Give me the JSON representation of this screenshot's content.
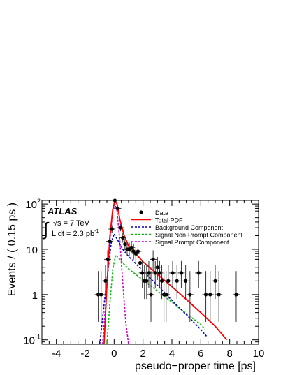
{
  "chart_data": {
    "type": "scatter",
    "xlabel": "pseudo−proper time [ps]",
    "ylabel": "Events / ( 0.15 ps )",
    "xlim": [
      -5,
      10
    ],
    "ylim": [
      0.08,
      120
    ],
    "yscale": "log",
    "x_ticks": [
      -4,
      -2,
      0,
      2,
      4,
      6,
      8,
      10
    ],
    "y_ticks": [
      {
        "value": 0.1,
        "base": "10",
        "exp": "-1"
      },
      {
        "value": 1,
        "base": "1",
        "exp": ""
      },
      {
        "value": 10,
        "base": "10",
        "exp": ""
      },
      {
        "value": 100,
        "base": "10",
        "exp": "2"
      }
    ],
    "annotation": {
      "experiment": "ATLAS",
      "energy": "√s = 7 TeV",
      "luminosity": "L dt = 2.3 pb",
      "luminosity_exp": "-1",
      "integral": "∫"
    },
    "legend_position": "top-right",
    "legend": [
      {
        "label": "Data",
        "kind": "marker",
        "color": "#000000"
      },
      {
        "label": "Total PDF",
        "kind": "solid",
        "color": "#ff0000"
      },
      {
        "label": "Background Component",
        "kind": "dashed",
        "color": "#0000cc"
      },
      {
        "label": "Signal Non-Prompt Component",
        "kind": "dashed",
        "color": "#00bb00"
      },
      {
        "label": "Signal Prompt Component",
        "kind": "dashed",
        "color": "#cc00cc"
      }
    ],
    "data_points": [
      {
        "x": -1.1,
        "y": 1,
        "lo": 0.25,
        "hi": 3.3
      },
      {
        "x": -0.9,
        "y": 1,
        "lo": 0.25,
        "hi": 3.3
      },
      {
        "x": -0.6,
        "y": 2,
        "lo": 0.8,
        "hi": 4.5
      },
      {
        "x": -0.45,
        "y": 6,
        "lo": 3.5,
        "hi": 9.5
      },
      {
        "x": -0.3,
        "y": 15,
        "lo": 11,
        "hi": 20
      },
      {
        "x": -0.15,
        "y": 28,
        "lo": 23,
        "hi": 34
      },
      {
        "x": 0.05,
        "y": 120,
        "lo": 109,
        "hi": 131
      },
      {
        "x": 0.25,
        "y": 80,
        "lo": 71,
        "hi": 89
      },
      {
        "x": 0.45,
        "y": 30,
        "lo": 25,
        "hi": 36
      },
      {
        "x": 0.6,
        "y": 18,
        "lo": 14,
        "hi": 23
      },
      {
        "x": 0.75,
        "y": 13,
        "lo": 9.5,
        "hi": 17
      },
      {
        "x": 0.9,
        "y": 10,
        "lo": 7,
        "hi": 14
      },
      {
        "x": 1.05,
        "y": 10,
        "lo": 7,
        "hi": 14
      },
      {
        "x": 1.2,
        "y": 11,
        "lo": 8,
        "hi": 15
      },
      {
        "x": 1.35,
        "y": 9,
        "lo": 6,
        "hi": 13
      },
      {
        "x": 1.5,
        "y": 8,
        "lo": 5,
        "hi": 11.5
      },
      {
        "x": 1.65,
        "y": 9,
        "lo": 6,
        "hi": 13
      },
      {
        "x": 1.8,
        "y": 5,
        "lo": 2.9,
        "hi": 8
      },
      {
        "x": 1.95,
        "y": 3,
        "lo": 1.4,
        "hi": 5.5
      },
      {
        "x": 2.1,
        "y": 2,
        "lo": 0.8,
        "hi": 4.5
      },
      {
        "x": 2.25,
        "y": 2,
        "lo": 0.8,
        "hi": 4.5
      },
      {
        "x": 2.4,
        "y": 3,
        "lo": 1.4,
        "hi": 5.5
      },
      {
        "x": 2.55,
        "y": 1,
        "lo": 0.25,
        "hi": 3.3
      },
      {
        "x": 2.7,
        "y": 6,
        "lo": 3.5,
        "hi": 9.5
      },
      {
        "x": 2.85,
        "y": 3,
        "lo": 1.4,
        "hi": 5.5
      },
      {
        "x": 3.0,
        "y": 4,
        "lo": 2.1,
        "hi": 6.8
      },
      {
        "x": 3.15,
        "y": 3,
        "lo": 1.4,
        "hi": 5.5
      },
      {
        "x": 3.3,
        "y": 2,
        "lo": 0.8,
        "hi": 4.5
      },
      {
        "x": 3.45,
        "y": 1,
        "lo": 0.25,
        "hi": 3.3
      },
      {
        "x": 3.6,
        "y": 1,
        "lo": 0.25,
        "hi": 3.3
      },
      {
        "x": 3.75,
        "y": 2,
        "lo": 0.8,
        "hi": 4.5
      },
      {
        "x": 4.05,
        "y": 3,
        "lo": 1.4,
        "hi": 5.5
      },
      {
        "x": 4.35,
        "y": 2,
        "lo": 0.8,
        "hi": 4.5
      },
      {
        "x": 4.65,
        "y": 3,
        "lo": 1.4,
        "hi": 5.5
      },
      {
        "x": 4.95,
        "y": 2,
        "lo": 0.8,
        "hi": 4.5
      },
      {
        "x": 5.25,
        "y": 1,
        "lo": 0.25,
        "hi": 3.3
      },
      {
        "x": 5.85,
        "y": 3,
        "lo": 1.4,
        "hi": 5.5
      },
      {
        "x": 6.35,
        "y": 1,
        "lo": 0.25,
        "hi": 3.3
      },
      {
        "x": 6.65,
        "y": 1,
        "lo": 0.25,
        "hi": 3.3
      },
      {
        "x": 7.0,
        "y": 2,
        "lo": 0.8,
        "hi": 4.5
      },
      {
        "x": 7.25,
        "y": 1,
        "lo": 0.25,
        "hi": 3.3
      },
      {
        "x": 8.45,
        "y": 1,
        "lo": 0.25,
        "hi": 3.3
      }
    ],
    "series": [
      {
        "label_index": 1,
        "color": "#ff0000",
        "dash": "",
        "x": [
          -0.7,
          -0.5,
          -0.3,
          -0.1,
          0.05,
          0.2,
          0.4,
          0.7,
          1.0,
          2.0,
          3.0,
          4.0,
          5.0,
          6.0,
          7.0,
          7.8
        ],
        "y": [
          0.08,
          1.6,
          18,
          75,
          120,
          100,
          45,
          20,
          12,
          5.3,
          2.8,
          1.5,
          0.78,
          0.4,
          0.2,
          0.1
        ]
      },
      {
        "label_index": 2,
        "color": "#0000cc",
        "dash": "3,2",
        "x": [
          -1.0,
          -0.7,
          -0.4,
          -0.2,
          0.0,
          0.3,
          0.6,
          1.0,
          2.0,
          3.0,
          4.0,
          5.0,
          6.0,
          6.4
        ],
        "y": [
          0.08,
          0.6,
          4,
          14,
          22,
          15,
          10,
          7,
          3.3,
          1.6,
          0.75,
          0.36,
          0.17,
          0.12
        ]
      },
      {
        "label_index": 3,
        "color": "#00bb00",
        "dash": "3,2",
        "x": [
          -0.5,
          -0.3,
          -0.1,
          0.1,
          0.3,
          0.6,
          1.0,
          2.0,
          3.0,
          4.0,
          5.0,
          6.0,
          6.3
        ],
        "y": [
          0.08,
          0.6,
          3.5,
          7.5,
          6.5,
          5,
          3.7,
          2.1,
          1.2,
          0.68,
          0.38,
          0.22,
          0.17
        ]
      },
      {
        "label_index": 4,
        "color": "#cc00cc",
        "dash": "3,2",
        "x": [
          -0.8,
          -0.5,
          -0.3,
          -0.1,
          0.05,
          0.2,
          0.4,
          0.6,
          0.8,
          1.0
        ],
        "y": [
          0.08,
          1.5,
          15,
          70,
          100,
          70,
          15,
          1.8,
          0.25,
          0.08
        ]
      }
    ]
  }
}
